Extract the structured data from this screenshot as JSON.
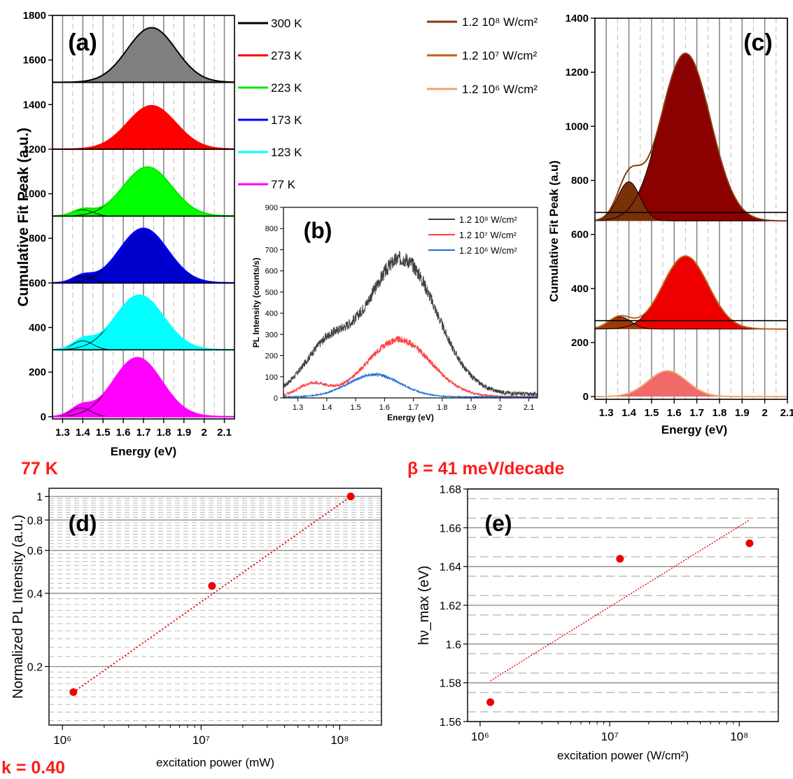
{
  "annotations": {
    "a_temp": "77 K",
    "d_slope": "k = 0.40",
    "e_slope": "β = 41 meV/decade"
  },
  "chart_data": [
    {
      "panel": "(a)",
      "type": "area",
      "xlabel": "Energy (eV)",
      "ylabel": "Cumulative Fit Peak (a.u.)",
      "xlim": [
        1.25,
        2.15
      ],
      "ylim": [
        -10,
        1800
      ],
      "xticks": [
        "1.3",
        "1.4",
        "1.5",
        "1.6",
        "1.7",
        "1.8",
        "1.9",
        "2",
        "2.1"
      ],
      "yticks": [
        "0",
        "200",
        "400",
        "600",
        "800",
        "1000",
        "1200",
        "1400",
        "1600",
        "1800"
      ],
      "legend_position": "right",
      "series": [
        {
          "name": "300 K",
          "color": "#000000",
          "fill": "#808080",
          "baseline": 1500,
          "peak_center": 1.74,
          "peak_height": 245,
          "peak_width": 0.12,
          "low_center": 1.4,
          "low_height": 0
        },
        {
          "name": "273 K",
          "color": "#ff0000",
          "fill": "#ff0000",
          "baseline": 1200,
          "peak_center": 1.74,
          "peak_height": 195,
          "peak_width": 0.12,
          "low_center": 1.4,
          "low_height": 0
        },
        {
          "name": "223 K",
          "color": "#00e600",
          "fill": "#00ff00",
          "baseline": 900,
          "peak_center": 1.72,
          "peak_height": 220,
          "peak_width": 0.12,
          "low_center": 1.4,
          "low_height": 28
        },
        {
          "name": "173 K",
          "color": "#0000ff",
          "fill": "#0000cc",
          "baseline": 600,
          "peak_center": 1.7,
          "peak_height": 245,
          "peak_width": 0.12,
          "low_center": 1.4,
          "low_height": 30
        },
        {
          "name": "123 K",
          "color": "#00ffff",
          "fill": "#00ffff",
          "baseline": 300,
          "peak_center": 1.68,
          "peak_height": 245,
          "peak_width": 0.12,
          "low_center": 1.4,
          "low_height": 40
        },
        {
          "name": "77 K",
          "color": "#ff00ff",
          "fill": "#ff00ff",
          "baseline": 0,
          "peak_center": 1.67,
          "peak_height": 265,
          "peak_width": 0.12,
          "low_center": 1.39,
          "low_height": 40
        }
      ]
    },
    {
      "panel": "(b)",
      "type": "line",
      "xlabel": "Energy (eV)",
      "ylabel": "PL Intensity (counts/s)",
      "xlim": [
        1.25,
        2.13
      ],
      "ylim": [
        0,
        900
      ],
      "xticks": [
        "1.3",
        "1.4",
        "1.5",
        "1.6",
        "1.7",
        "1.8",
        "1.9",
        "2",
        "2.1"
      ],
      "yticks": [
        "0",
        "100",
        "200",
        "300",
        "400",
        "500",
        "600",
        "700",
        "800",
        "900"
      ],
      "legend_position": "top-right",
      "series": [
        {
          "name": "1.2 10⁸ W/cm²",
          "color": "#404040",
          "noise": 55,
          "components": [
            {
              "center": 1.66,
              "height": 640,
              "width": 0.12
            },
            {
              "center": 1.4,
              "height": 210,
              "width": 0.08
            }
          ]
        },
        {
          "name": "1.2 10⁷ W/cm²",
          "color": "#ff4040",
          "noise": 25,
          "components": [
            {
              "center": 1.65,
              "height": 270,
              "width": 0.11
            },
            {
              "center": 1.35,
              "height": 60,
              "width": 0.05
            }
          ]
        },
        {
          "name": "1.2 10⁶ W/cm²",
          "color": "#1f6fd6",
          "noise": 12,
          "components": [
            {
              "center": 1.565,
              "height": 105,
              "width": 0.09
            }
          ]
        }
      ]
    },
    {
      "panel": "(c)",
      "type": "area",
      "xlabel": "Energy (eV)",
      "ylabel": "Cumulative Fit Peak (a.u)",
      "xlim": [
        1.25,
        2.1
      ],
      "ylim": [
        -10,
        1400
      ],
      "xticks": [
        "1.3",
        "1.4",
        "1.5",
        "1.6",
        "1.7",
        "1.8",
        "1.9",
        "2",
        "2.1"
      ],
      "yticks": [
        "0",
        "200",
        "400",
        "600",
        "800",
        "1000",
        "1200",
        "1400"
      ],
      "legend_position": "top-left",
      "series": [
        {
          "name": "1.2 10⁸ W/cm²",
          "color": "#8b3a0f",
          "fill": "#8b0000",
          "baseline": 650,
          "peak_center": 1.65,
          "peak_height": 620,
          "peak_width": 0.11,
          "low_center": 1.4,
          "low_height": 145,
          "low_fill": "#7a3008"
        },
        {
          "name": "1.2 10⁷ W/cm²",
          "color": "#c0601a",
          "fill": "#ee0000",
          "baseline": 250,
          "peak_center": 1.65,
          "peak_height": 270,
          "peak_width": 0.1,
          "low_center": 1.36,
          "low_height": 45,
          "low_fill": "#9a3a0a"
        },
        {
          "name": "1.2 10⁶ W/cm²",
          "color": "#f5a36a",
          "fill": "#f06a6a",
          "baseline": 0,
          "peak_center": 1.57,
          "peak_height": 95,
          "peak_width": 0.085,
          "low_center": 1.36,
          "low_height": 0,
          "low_fill": "#f06a6a"
        }
      ]
    },
    {
      "panel": "(d)",
      "type": "scatter",
      "xlabel": "excitation power (mW)",
      "ylabel": "Normalized PL Intensity (a.u.)",
      "xscale": "log",
      "yscale": "log",
      "xlim": [
        800000,
        200000000
      ],
      "ylim": [
        0.115,
        1.08
      ],
      "xticks": [
        "10⁶",
        "10⁷",
        "10⁸"
      ],
      "yticks": [
        "0.2",
        "0.4",
        "0.6",
        "0.8",
        "1"
      ],
      "x": [
        1200000,
        12000000,
        120000000
      ],
      "y": [
        0.157,
        0.429,
        1.0
      ],
      "fit": {
        "x": [
          1200000,
          120000000
        ],
        "y": [
          0.157,
          1.0
        ]
      },
      "point_color": "#ee0000"
    },
    {
      "panel": "(e)",
      "type": "scatter",
      "xlabel": "excitation power (W/cm²)",
      "ylabel": "hν_max (eV)",
      "xscale": "log",
      "xlim": [
        800000,
        200000000
      ],
      "ylim": [
        1.56,
        1.68
      ],
      "xticks": [
        "10⁶",
        "10⁷",
        "10⁸"
      ],
      "yticks": [
        "1.56",
        "1.58",
        "1.6",
        "1.62",
        "1.64",
        "1.66",
        "1.68"
      ],
      "x": [
        1200000,
        12000000,
        120000000
      ],
      "y": [
        1.57,
        1.644,
        1.652
      ],
      "fit": {
        "x": [
          1200000,
          120000000
        ],
        "y": [
          1.581,
          1.664
        ]
      },
      "point_color": "#ee0000"
    }
  ]
}
